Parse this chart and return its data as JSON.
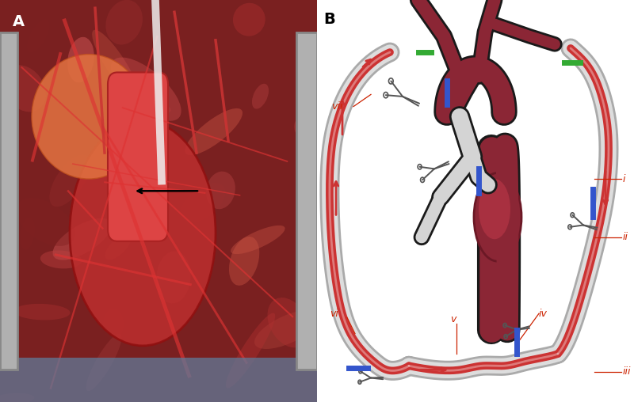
{
  "panel_a_label": "A",
  "panel_b_label": "B",
  "label_fontsize": 14,
  "label_fontweight": "bold",
  "background_color": "#ffffff",
  "roman_labels": [
    "i",
    "ii",
    "iii",
    "iv",
    "v",
    "vi",
    "vii"
  ],
  "roman_label_color": "#cc2200",
  "roman_label_fontsize": 9,
  "arrow_color": "#cc2200",
  "black_arrow_color": "#000000",
  "aorta_color": "#8B2635",
  "aorta_dark": "#6B1825",
  "tube_color": "#e8e8e8",
  "circuit_color_red": "#cc3333",
  "circuit_color_white": "#f0f0f0",
  "blue_marker_color": "#3355cc",
  "green_marker_color": "#33aa33",
  "panel_split": 0.5
}
